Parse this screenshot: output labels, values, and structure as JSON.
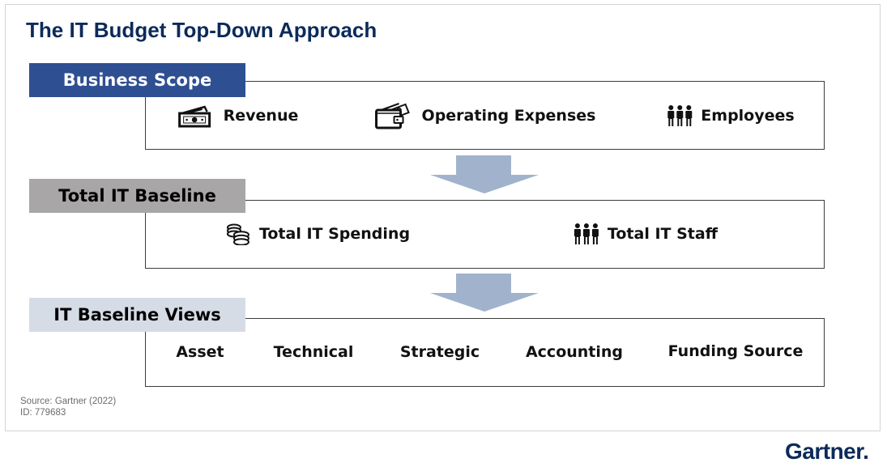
{
  "title": "The IT Budget Top-Down Approach",
  "colors": {
    "title": "#0c2a5b",
    "business_scope_label_bg": "#2f4f93",
    "total_it_baseline_label_bg": "#a8a6a6",
    "it_baseline_views_label_bg": "#d6dce6",
    "arrow": "#a1b3cc"
  },
  "business_scope": {
    "label": "Business Scope",
    "items": [
      {
        "text": "Revenue",
        "icon": "money-bill-icon"
      },
      {
        "text": "Operating Expenses",
        "icon": "wallet-cash-icon"
      },
      {
        "text": "Employees",
        "icon": "people-group-icon"
      }
    ]
  },
  "total_it_baseline": {
    "label": "Total IT Baseline",
    "items": [
      {
        "text": "Total IT Spending",
        "icon": "coin-stack-icon"
      },
      {
        "text": "Total IT Staff",
        "icon": "people-group-icon"
      }
    ]
  },
  "it_baseline_views": {
    "label": "IT Baseline Views",
    "items": [
      "Asset",
      "Technical",
      "Strategic",
      "Accounting",
      "Funding Source"
    ]
  },
  "footer": {
    "source": "Source: Gartner (2022)",
    "id": "ID: 779683"
  },
  "logo": "Gartner."
}
